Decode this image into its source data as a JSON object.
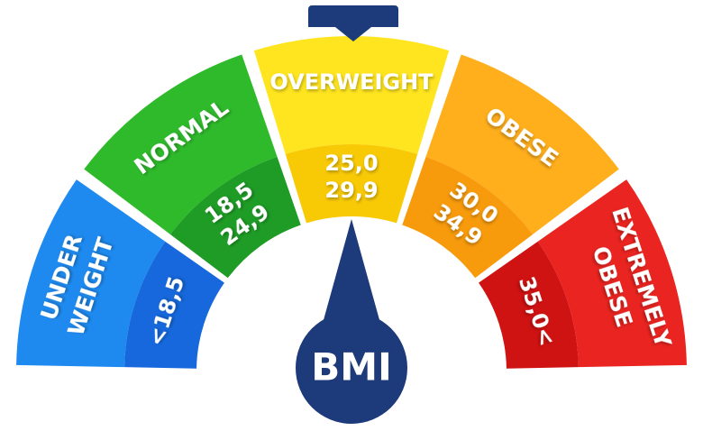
{
  "segments": [
    {
      "label": [
        "UNDER",
        "WEIGHT"
      ],
      "range": [
        "<18,5"
      ]
    },
    {
      "label": [
        "NORMAL"
      ],
      "range": [
        "18,5",
        "24,9"
      ]
    },
    {
      "label": [
        "OVERWEIGHT"
      ],
      "range": [
        "25,0",
        "29,9"
      ]
    },
    {
      "label": [
        "OBESE"
      ],
      "range": [
        "30,0",
        "34,9"
      ]
    },
    {
      "label": [
        "EXTREMELY",
        "OBESE"
      ],
      "range": [
        "35,0<"
      ]
    }
  ],
  "center_label": "BMI"
}
